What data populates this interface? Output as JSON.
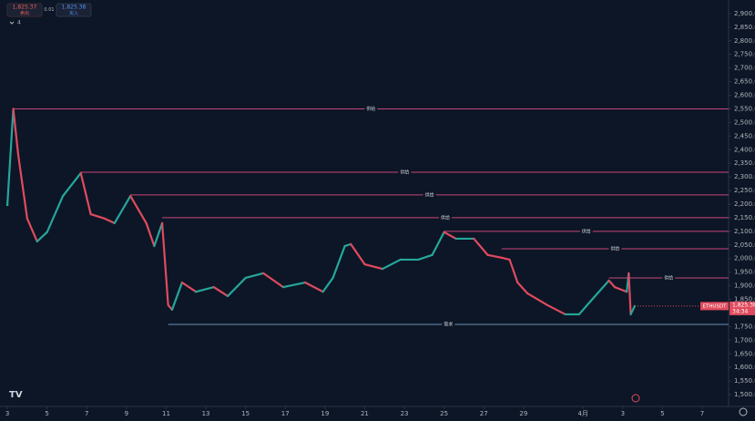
{
  "widget": {
    "sell_price": "1,825.37",
    "sell_label": "卖出",
    "spread": "0.01",
    "buy_price": "1,825.38",
    "buy_label": "买入",
    "indicator_count": "4"
  },
  "chart_data": {
    "type": "candlestick",
    "symbol": "ETHUSDT",
    "last_price": {
      "value": 1825.38,
      "label": "1,825.38"
    },
    "countdown": "34:34",
    "x": [
      0,
      0.3,
      0.55,
      1,
      1.5,
      2,
      2.8,
      3.7,
      4.2,
      4.9,
      5.4,
      6.2,
      7,
      7.4,
      7.8,
      8.1,
      8.3,
      8.8,
      9.5,
      10.4,
      11.1,
      12,
      12.9,
      13.9,
      15,
      15.9,
      16.4,
      17,
      17.3,
      18,
      18.9,
      19.8,
      20.7,
      21.4,
      22,
      22.6,
      23.5,
      24.2,
      24.9,
      25.3,
      25.7,
      26.2,
      27.2,
      28.1,
      28.8,
      29.4,
      30.3,
      30.6,
      31.2,
      31.3,
      31.4,
      31.6
    ],
    "values": [
      2197,
      2550,
      2380,
      2147,
      2063,
      2097,
      2230,
      2314,
      2163,
      2147,
      2130,
      2230,
      2130,
      2046,
      2130,
      1829,
      1812,
      1912,
      1878,
      1895,
      1862,
      1929,
      1946,
      1895,
      1912,
      1878,
      1929,
      2046,
      2053,
      1979,
      1962,
      1996,
      1996,
      2013,
      2097,
      2073,
      2073,
      2013,
      2003,
      1996,
      1912,
      1872,
      1829,
      1795,
      1795,
      1845,
      1919,
      1895,
      1878,
      1946,
      1795,
      1825.38
    ],
    "xlim": [
      -0.37,
      36.33
    ],
    "xticks": [
      {
        "value": 0,
        "label": "3"
      },
      {
        "value": 2,
        "label": "5"
      },
      {
        "value": 4,
        "label": "7"
      },
      {
        "value": 6,
        "label": "9"
      },
      {
        "value": 8,
        "label": "11"
      },
      {
        "value": 10,
        "label": "13"
      },
      {
        "value": 12,
        "label": "15"
      },
      {
        "value": 14,
        "label": "17"
      },
      {
        "value": 16,
        "label": "19"
      },
      {
        "value": 18,
        "label": "21"
      },
      {
        "value": 20,
        "label": "23"
      },
      {
        "value": 22,
        "label": "25"
      },
      {
        "value": 24,
        "label": "27"
      },
      {
        "value": 26,
        "label": "29"
      },
      {
        "value": 29,
        "label": "4月"
      },
      {
        "value": 31,
        "label": "3"
      },
      {
        "value": 33,
        "label": "5"
      },
      {
        "value": 35,
        "label": "7"
      }
    ],
    "ylim": [
      1450,
      2950
    ],
    "yticks": [
      {
        "value": 1500,
        "label": "1,500.00"
      },
      {
        "value": 1550,
        "label": "1,550.00"
      },
      {
        "value": 1600,
        "label": "1,600.00"
      },
      {
        "value": 1650,
        "label": "1,650.00"
      },
      {
        "value": 1700,
        "label": "1,700.00"
      },
      {
        "value": 1750,
        "label": "1,750.00"
      },
      {
        "value": 1800,
        "label": "1,800.00"
      },
      {
        "value": 1850,
        "label": "1,850.00"
      },
      {
        "value": 1900,
        "label": "1,900.00"
      },
      {
        "value": 1950,
        "label": "1,950.00"
      },
      {
        "value": 2000,
        "label": "2,000.00"
      },
      {
        "value": 2050,
        "label": "2,050.00"
      },
      {
        "value": 2100,
        "label": "2,100.00"
      },
      {
        "value": 2150,
        "label": "2,150.00"
      },
      {
        "value": 2200,
        "label": "2,200.00"
      },
      {
        "value": 2250,
        "label": "2,250.00"
      },
      {
        "value": 2300,
        "label": "2,300.00"
      },
      {
        "value": 2350,
        "label": "2,350.00"
      },
      {
        "value": 2400,
        "label": "2,400.00"
      },
      {
        "value": 2450,
        "label": "2,450.00"
      },
      {
        "value": 2500,
        "label": "2,500.00"
      },
      {
        "value": 2550,
        "label": "2,550.00"
      },
      {
        "value": 2600,
        "label": "2,600.00"
      },
      {
        "value": 2650,
        "label": "2,650.00"
      },
      {
        "value": 2700,
        "label": "2,700.00"
      },
      {
        "value": 2750,
        "label": "2,750.00"
      },
      {
        "value": 2800,
        "label": "2,800.00"
      },
      {
        "value": 2850,
        "label": "2,850.00"
      },
      {
        "value": 2900,
        "label": "2,900.00"
      }
    ],
    "levels": [
      {
        "value": 2550,
        "x": 0.3,
        "label": "供给"
      },
      {
        "value": 2317,
        "x": 3.7,
        "label": "供给"
      },
      {
        "value": 2234,
        "x": 6.2,
        "label": "供给"
      },
      {
        "value": 2150,
        "x": 7.8,
        "label": "供给"
      },
      {
        "value": 2100,
        "x": 22,
        "label": "供给"
      },
      {
        "value": 2036,
        "x": 24.9,
        "label": "供给"
      },
      {
        "value": 1929,
        "x": 30.3,
        "label": "供给"
      },
      {
        "value": 1758,
        "x": 8.1,
        "label": "需求",
        "color": "#6f8fb0"
      }
    ],
    "level_color": "#c8457a",
    "up_color": "#26a69a",
    "down_color": "#e04b5e"
  }
}
